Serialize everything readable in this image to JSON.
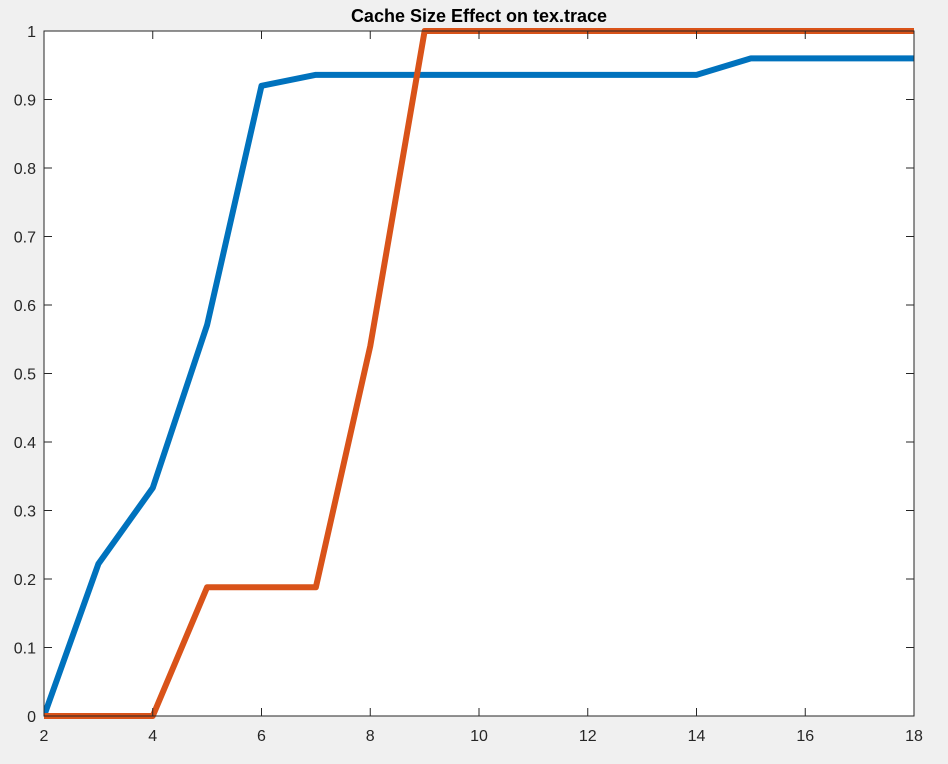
{
  "chart_data": {
    "type": "line",
    "title": "Cache Size Effect on tex.trace",
    "xlabel": "",
    "ylabel": "",
    "xlim": [
      2,
      18
    ],
    "ylim": [
      0,
      1
    ],
    "xticks": [
      2,
      4,
      6,
      8,
      10,
      12,
      14,
      16,
      18
    ],
    "yticks": [
      0,
      0.1,
      0.2,
      0.3,
      0.4,
      0.5,
      0.6,
      0.7,
      0.8,
      0.9,
      1
    ],
    "grid": false,
    "legend": "none",
    "series": [
      {
        "color": "#0072bd",
        "x": [
          2,
          3,
          4,
          5,
          6,
          7,
          8,
          9,
          10,
          11,
          12,
          13,
          14,
          15,
          16,
          17,
          18
        ],
        "y": [
          0,
          0.222,
          0.333,
          0.571,
          0.92,
          0.936,
          0.936,
          0.936,
          0.936,
          0.936,
          0.936,
          0.936,
          0.936,
          0.96,
          0.96,
          0.96,
          0.96
        ]
      },
      {
        "color": "#d95319",
        "x": [
          2,
          3,
          4,
          5,
          6,
          7,
          8,
          9,
          10,
          11,
          12,
          13,
          14,
          15,
          16,
          17,
          18
        ],
        "y": [
          0,
          0,
          0,
          0.188,
          0.188,
          0.188,
          0.54,
          1,
          1,
          1,
          1,
          1,
          1,
          1,
          1,
          1,
          1
        ]
      }
    ]
  }
}
